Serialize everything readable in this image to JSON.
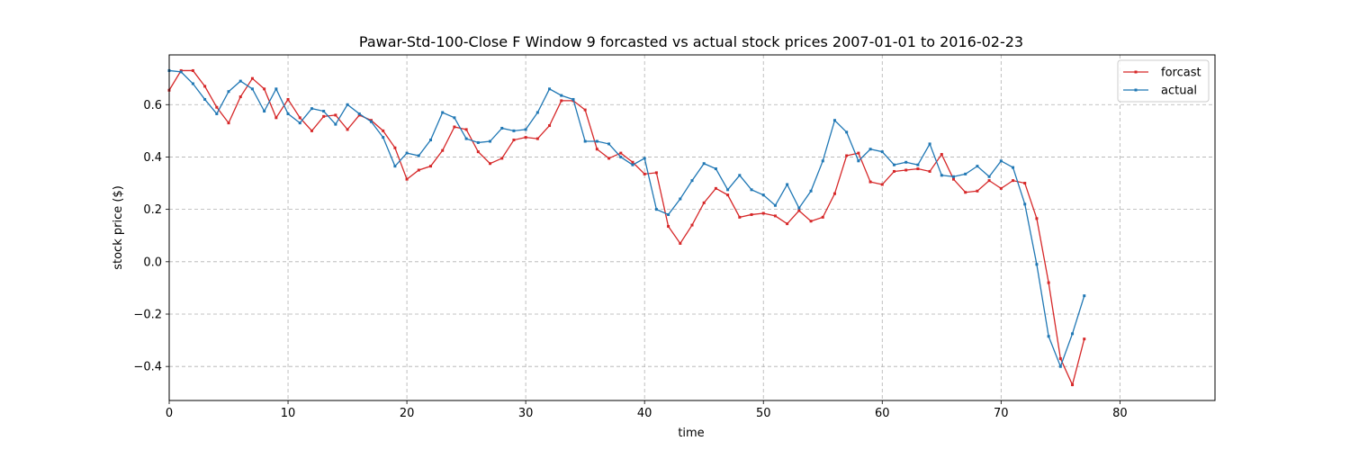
{
  "chart_data": {
    "type": "line",
    "title": "Pawar-Std-100-Close F Window 9 forcasted vs actual stock prices 2007-01-01 to 2016-02-23",
    "xlabel": "time",
    "ylabel": "stock price ($)",
    "xlim": [
      0,
      88
    ],
    "ylim": [
      -0.53,
      0.79
    ],
    "xticks": [
      0,
      10,
      20,
      30,
      40,
      50,
      60,
      70,
      80
    ],
    "yticks": [
      -0.4,
      -0.2,
      0.0,
      0.2,
      0.4,
      0.6
    ],
    "xtick_labels": [
      "0",
      "10",
      "20",
      "30",
      "40",
      "50",
      "60",
      "70",
      "80"
    ],
    "ytick_labels": [
      "−0.4",
      "−0.2",
      "0.0",
      "0.2",
      "0.4",
      "0.6"
    ],
    "grid": true,
    "legend_position": "top-right",
    "series": [
      {
        "name": "forcast",
        "color": "#d62728",
        "values": [
          0.655,
          0.73,
          0.73,
          0.67,
          0.59,
          0.53,
          0.63,
          0.7,
          0.66,
          0.55,
          0.62,
          0.55,
          0.5,
          0.555,
          0.56,
          0.505,
          0.56,
          0.54,
          0.5,
          0.435,
          0.315,
          0.35,
          0.365,
          0.425,
          0.515,
          0.505,
          0.42,
          0.375,
          0.395,
          0.465,
          0.475,
          0.47,
          0.52,
          0.615,
          0.615,
          0.58,
          0.43,
          0.395,
          0.415,
          0.38,
          0.335,
          0.34,
          0.135,
          0.07,
          0.14,
          0.225,
          0.28,
          0.255,
          0.17,
          0.18,
          0.185,
          0.175,
          0.145,
          0.195,
          0.155,
          0.17,
          0.26,
          0.405,
          0.415,
          0.305,
          0.295,
          0.345,
          0.35,
          0.355,
          0.345,
          0.41,
          0.315,
          0.265,
          0.27,
          0.31,
          0.28,
          0.31,
          0.3,
          0.165,
          -0.08,
          -0.37,
          -0.47,
          -0.295
        ]
      },
      {
        "name": "actual",
        "color": "#1f77b4",
        "values": [
          0.73,
          0.725,
          0.68,
          0.62,
          0.565,
          0.65,
          0.69,
          0.66,
          0.575,
          0.66,
          0.565,
          0.53,
          0.585,
          0.575,
          0.525,
          0.6,
          0.565,
          0.535,
          0.475,
          0.365,
          0.415,
          0.405,
          0.465,
          0.57,
          0.55,
          0.47,
          0.455,
          0.46,
          0.51,
          0.5,
          0.505,
          0.57,
          0.66,
          0.635,
          0.62,
          0.46,
          0.46,
          0.45,
          0.4,
          0.37,
          0.395,
          0.2,
          0.18,
          0.24,
          0.31,
          0.375,
          0.355,
          0.275,
          0.33,
          0.275,
          0.255,
          0.215,
          0.295,
          0.205,
          0.27,
          0.385,
          0.54,
          0.495,
          0.385,
          0.43,
          0.42,
          0.37,
          0.38,
          0.37,
          0.45,
          0.33,
          0.325,
          0.335,
          0.365,
          0.325,
          0.385,
          0.36,
          0.22,
          -0.01,
          -0.285,
          -0.4,
          -0.275,
          -0.13
        ]
      }
    ]
  }
}
